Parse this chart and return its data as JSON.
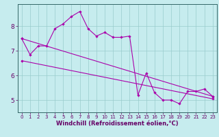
{
  "xlabel": "Windchill (Refroidissement éolien,°C)",
  "background_color": "#c6ecee",
  "line_color": "#aa00aa",
  "grid_color": "#99cccc",
  "ylim": [
    4.5,
    8.9
  ],
  "xlim": [
    -0.5,
    23.5
  ],
  "yticks": [
    5,
    6,
    7,
    8
  ],
  "xticks": [
    0,
    1,
    2,
    3,
    4,
    5,
    6,
    7,
    8,
    9,
    10,
    11,
    12,
    13,
    14,
    15,
    16,
    17,
    18,
    19,
    20,
    21,
    22,
    23
  ],
  "series1_x": [
    0,
    1,
    2,
    3,
    4,
    5,
    6,
    7,
    8,
    9,
    10,
    11,
    12,
    13,
    14,
    15,
    16,
    17,
    18,
    19,
    20,
    21,
    22,
    23
  ],
  "series1_y": [
    7.5,
    6.85,
    7.2,
    7.2,
    7.9,
    8.1,
    8.4,
    8.6,
    7.9,
    7.6,
    7.75,
    7.55,
    7.55,
    7.6,
    5.2,
    6.1,
    5.3,
    5.0,
    5.0,
    4.85,
    5.35,
    5.35,
    5.45,
    5.15
  ],
  "trend1_x": [
    0,
    23
  ],
  "trend1_y": [
    7.5,
    5.15
  ],
  "trend2_x": [
    0,
    23
  ],
  "trend2_y": [
    6.6,
    5.05
  ],
  "spine_color": "#336666",
  "tick_color": "#660066",
  "xlabel_color": "#660066",
  "xlabel_fontsize": 6.0,
  "tick_fontsize_x": 5.0,
  "tick_fontsize_y": 6.5
}
